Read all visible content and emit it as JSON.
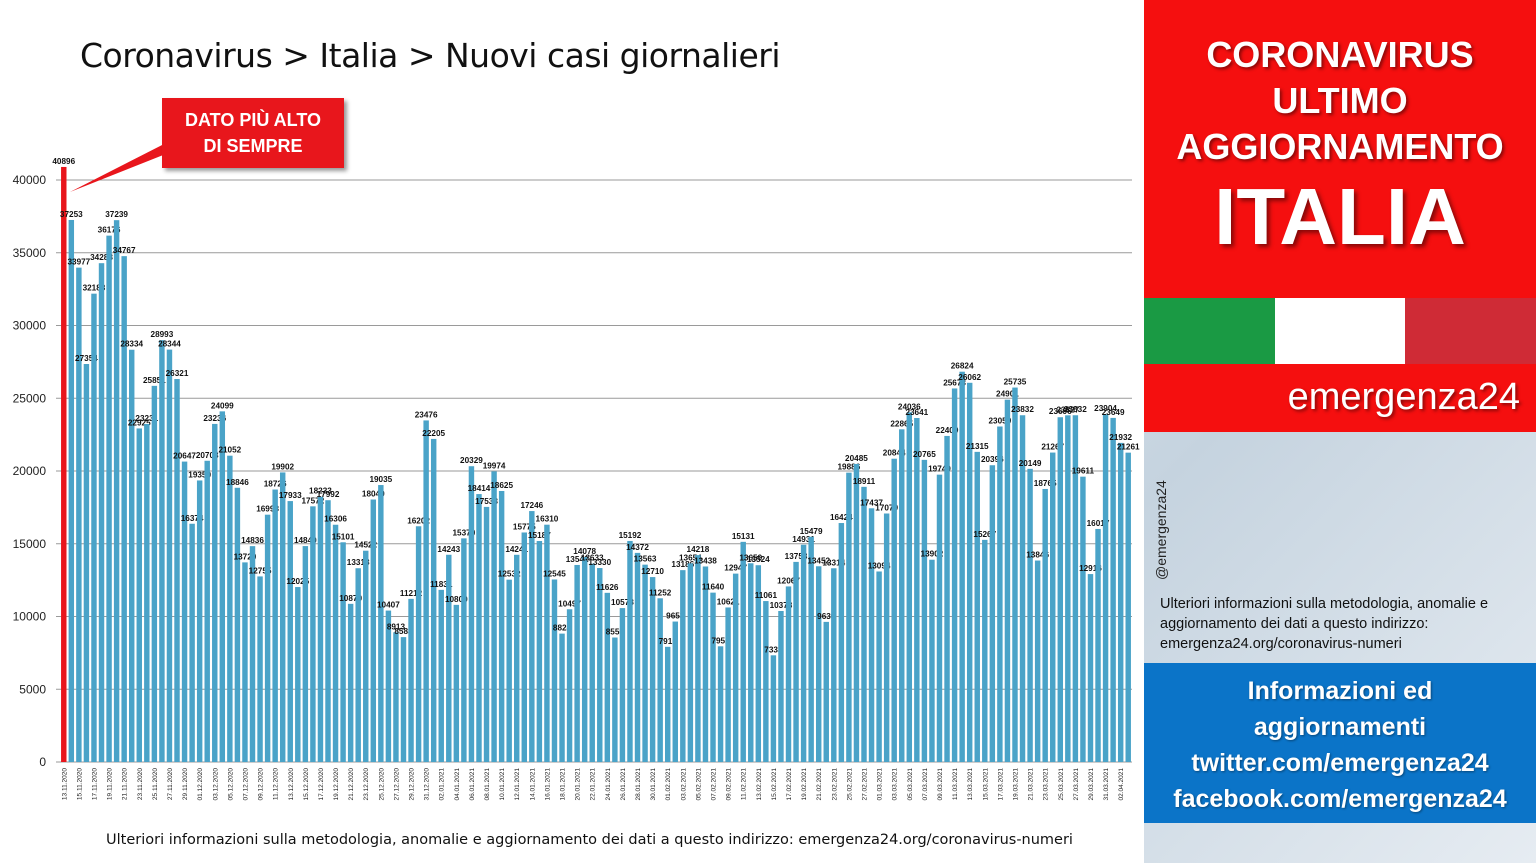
{
  "title": "Coronavirus > Italia > Nuovi casi giornalieri",
  "callout": {
    "line1": "DATO PIÙ ALTO",
    "line2": "DI SEMPRE"
  },
  "footer_note": "Ulteriori informazioni sulla metodologia, anomalie e aggiornamento dei dati a questo indirizzo: emergenza24.org/coronavirus-numeri",
  "side": {
    "red_lines": [
      "CORONAVIRUS",
      "ULTIMO",
      "AGGIORNAMENTO"
    ],
    "big": "ITALIA",
    "brand": "emergenza24",
    "handle": "@emergenza24",
    "info": "Ulteriori informazioni sulla metodologia, anomalie e aggiornamento dei dati a questo indirizzo: emergenza24.org/coronavirus-numeri",
    "blue_lines": [
      "Informazioni ed",
      "aggiornamenti",
      "twitter.com/emergenza24",
      "facebook.com/emergenza24"
    ],
    "flag_colors": [
      "#1a9a44",
      "#ffffff",
      "#cf2b36"
    ]
  },
  "colors": {
    "bar": "#4aa3c8",
    "highlight": "#e8161c",
    "grid": "#9a9a9a"
  },
  "chart_data": {
    "type": "bar",
    "title": "Coronavirus > Italia > Nuovi casi giornalieri",
    "xlabel": "",
    "ylabel": "",
    "ylim": [
      0,
      40000
    ],
    "yticks": [
      0,
      5000,
      10000,
      15000,
      20000,
      25000,
      30000,
      35000,
      40000
    ],
    "grid": true,
    "start_date": "2020-11-13",
    "x_tick_labels": [
      "13.11.2020",
      "15.11.2020",
      "17.11.2020",
      "19.11.2020",
      "21.11.2020",
      "23.11.2020",
      "25.11.2020",
      "27.11.2020",
      "29.11.2020",
      "01.12.2020",
      "03.12.2020",
      "05.12.2020",
      "07.12.2020",
      "09.12.2020",
      "11.12.2020",
      "13.12.2020",
      "15.12.2020",
      "17.12.2020",
      "19.12.2020",
      "21.12.2020",
      "23.12.2020",
      "25.12.2020",
      "27.12.2020",
      "29.12.2020",
      "31.12.2020",
      "02.01.2021",
      "04.01.2021",
      "06.01.2021",
      "08.01.2021",
      "10.01.2021",
      "12.01.2021",
      "14.01.2021",
      "16.01.2021",
      "18.01.2021",
      "20.01.2021",
      "22.01.2021",
      "24.01.2021",
      "26.01.2021",
      "28.01.2021",
      "30.01.2021",
      "01.02.2021",
      "03.02.2021",
      "05.02.2021",
      "07.02.2021",
      "09.02.2021",
      "11.02.2021",
      "13.02.2021",
      "15.02.2021",
      "17.02.2021",
      "19.02.2021",
      "21.02.2021",
      "23.02.2021",
      "25.02.2021",
      "27.02.2021",
      "01.03.2021",
      "03.03.2021",
      "05.03.2021",
      "07.03.2021",
      "09.03.2021",
      "11.03.2021",
      "13.03.2021",
      "15.03.2021",
      "17.03.2021",
      "19.03.2021",
      "21.03.2021",
      "23.03.2021",
      "25.03.2021",
      "27.03.2021",
      "29.03.2021",
      "31.03.2021",
      "02.04.2021"
    ],
    "values": [
      40896,
      37253,
      33977,
      27354,
      32188,
      34283,
      36176,
      37239,
      34767,
      28334,
      22925,
      23231,
      25851,
      28993,
      28344,
      26321,
      20647,
      16374,
      19350,
      20703,
      23236,
      24099,
      21052,
      18846,
      13720,
      14836,
      12755,
      16998,
      18726,
      19902,
      17933,
      12025,
      14840,
      17572,
      18233,
      17992,
      16306,
      15101,
      10870,
      13318,
      14522,
      18040,
      19035,
      10407,
      8913,
      8583,
      11212,
      16202,
      23476,
      22205,
      11831,
      14243,
      10800,
      15370,
      20329,
      18414,
      17533,
      19974,
      18625,
      12532,
      14241,
      15775,
      17246,
      15187,
      16310,
      12545,
      8824,
      10497,
      13542,
      14078,
      13633,
      13330,
      11626,
      8555,
      10578,
      15192,
      14372,
      13563,
      12710,
      11252,
      7916,
      9653,
      13186,
      13654,
      14218,
      13438,
      11640,
      7952,
      10621,
      12947,
      15131,
      13659,
      13524,
      11061,
      7333,
      10378,
      12067,
      13753,
      14931,
      15479,
      13452,
      9630,
      13314,
      16424,
      19886,
      20485,
      18911,
      17437,
      13094,
      17079,
      20844,
      22865,
      24036,
      23641,
      20765,
      13902,
      19749,
      22409,
      25673,
      26824,
      26062,
      21315,
      15267,
      20396,
      23059,
      24901,
      25735,
      23832,
      20149,
      13846,
      18765,
      21267,
      23696,
      23827,
      23832,
      19611,
      12916,
      16017,
      23904,
      23649,
      21932,
      21261
    ]
  }
}
